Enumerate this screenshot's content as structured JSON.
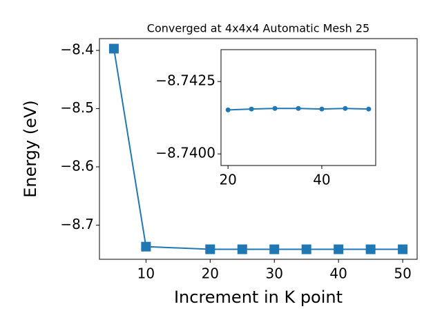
{
  "chart_data": [
    {
      "type": "line",
      "title": "Converged at 4x4x4 Automatic Mesh 25",
      "x_label": "Increment in K point",
      "y_label": "Energy (eV)",
      "x": [
        5,
        10,
        20,
        25,
        30,
        35,
        40,
        45,
        50
      ],
      "values": [
        -8.397,
        -8.737,
        -8.74152,
        -8.74155,
        -8.74157,
        -8.74157,
        -8.74155,
        -8.74157,
        -8.74155
      ],
      "color": "#1f77b4",
      "marker": "square",
      "xlim": [
        2.75,
        52.25
      ],
      "xticks": [
        10,
        20,
        30,
        40,
        50
      ],
      "ylim": [
        -8.7587,
        -8.3798
      ],
      "yticks": [
        {
          "value": -8.4,
          "label": "−8.4"
        },
        {
          "value": -8.5,
          "label": "−8.5"
        },
        {
          "value": -8.6,
          "label": "−8.6"
        },
        {
          "value": -8.7,
          "label": "−8.7"
        }
      ]
    },
    {
      "type": "line",
      "x": [
        20,
        25,
        30,
        35,
        40,
        45,
        50
      ],
      "values": [
        -8.74152,
        -8.74155,
        -8.74157,
        -8.74157,
        -8.74155,
        -8.74157,
        -8.74155
      ],
      "color": "#1f77b4",
      "marker": "circle",
      "xlim": [
        18.5,
        51.5
      ],
      "xticks": [
        20,
        40
      ],
      "ylim": [
        -8.7396,
        -8.7436
      ],
      "yticks": [
        {
          "value": -8.7425,
          "label": "−8.7425"
        },
        {
          "value": -8.74,
          "label": "−8.7400"
        }
      ]
    }
  ]
}
